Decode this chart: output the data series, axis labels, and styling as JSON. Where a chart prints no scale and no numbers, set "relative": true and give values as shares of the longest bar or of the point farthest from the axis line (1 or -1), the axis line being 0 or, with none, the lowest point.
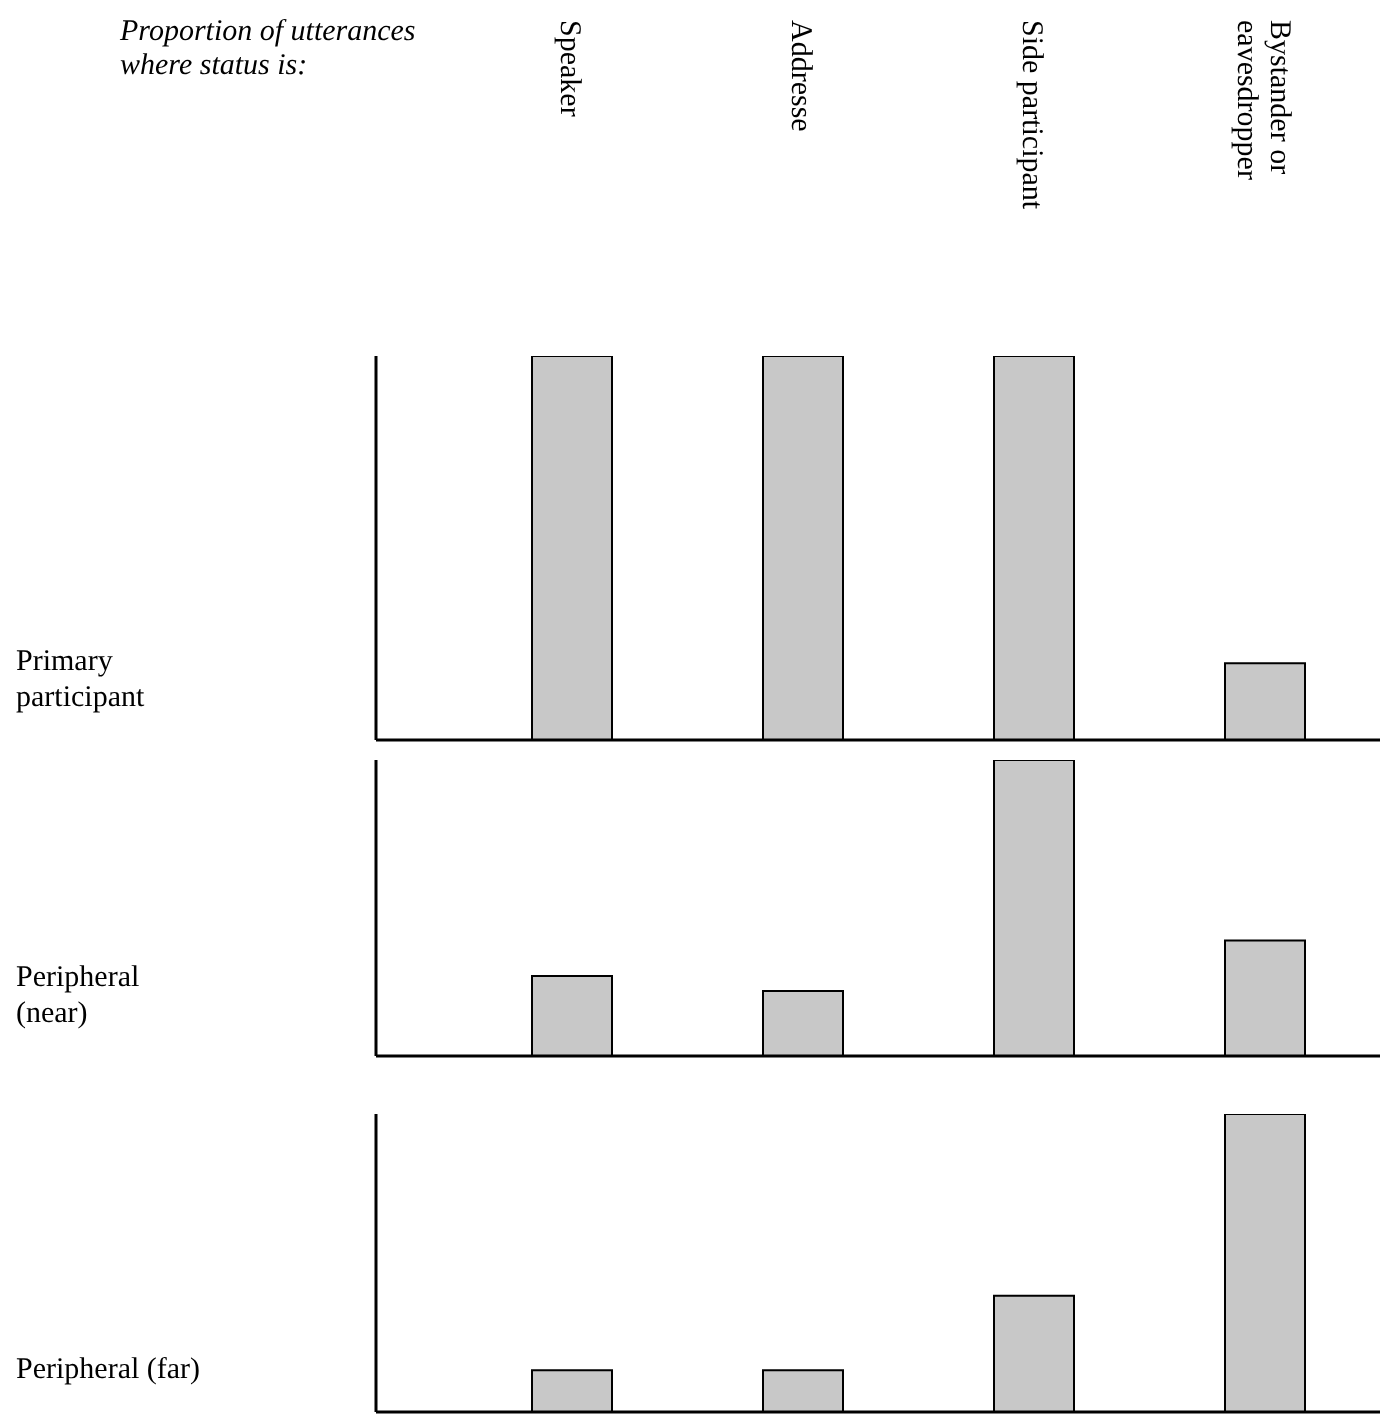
{
  "chart_data": [
    {
      "type": "bar",
      "title": "Proportion of utterances where status is:",
      "ylabel": "Primary participant",
      "categories": [
        "Speaker",
        "Addresse",
        "Side participant",
        "Bystander or eavesdropper"
      ],
      "values": [
        1,
        1,
        1,
        0.2
      ],
      "color": "#c8c8c8",
      "relative": true,
      "tick_labels": "x",
      "grid": false
    },
    {
      "type": "bar",
      "ylabel": "Peripheral (near)",
      "categories": [
        null,
        null,
        null,
        null
      ],
      "values": [
        0.27,
        0.22,
        1,
        0.39
      ],
      "color": "#c8c8c8",
      "relative": true,
      "tick_labels": false,
      "grid": false
    },
    {
      "type": "bar",
      "ylabel": "Peripheral (far)",
      "categories": [
        null,
        null,
        null,
        null
      ],
      "values": [
        0.14,
        0.14,
        0.39,
        1
      ],
      "color": "#c8c8c8",
      "relative": true,
      "tick_labels": false,
      "grid": false
    }
  ]
}
